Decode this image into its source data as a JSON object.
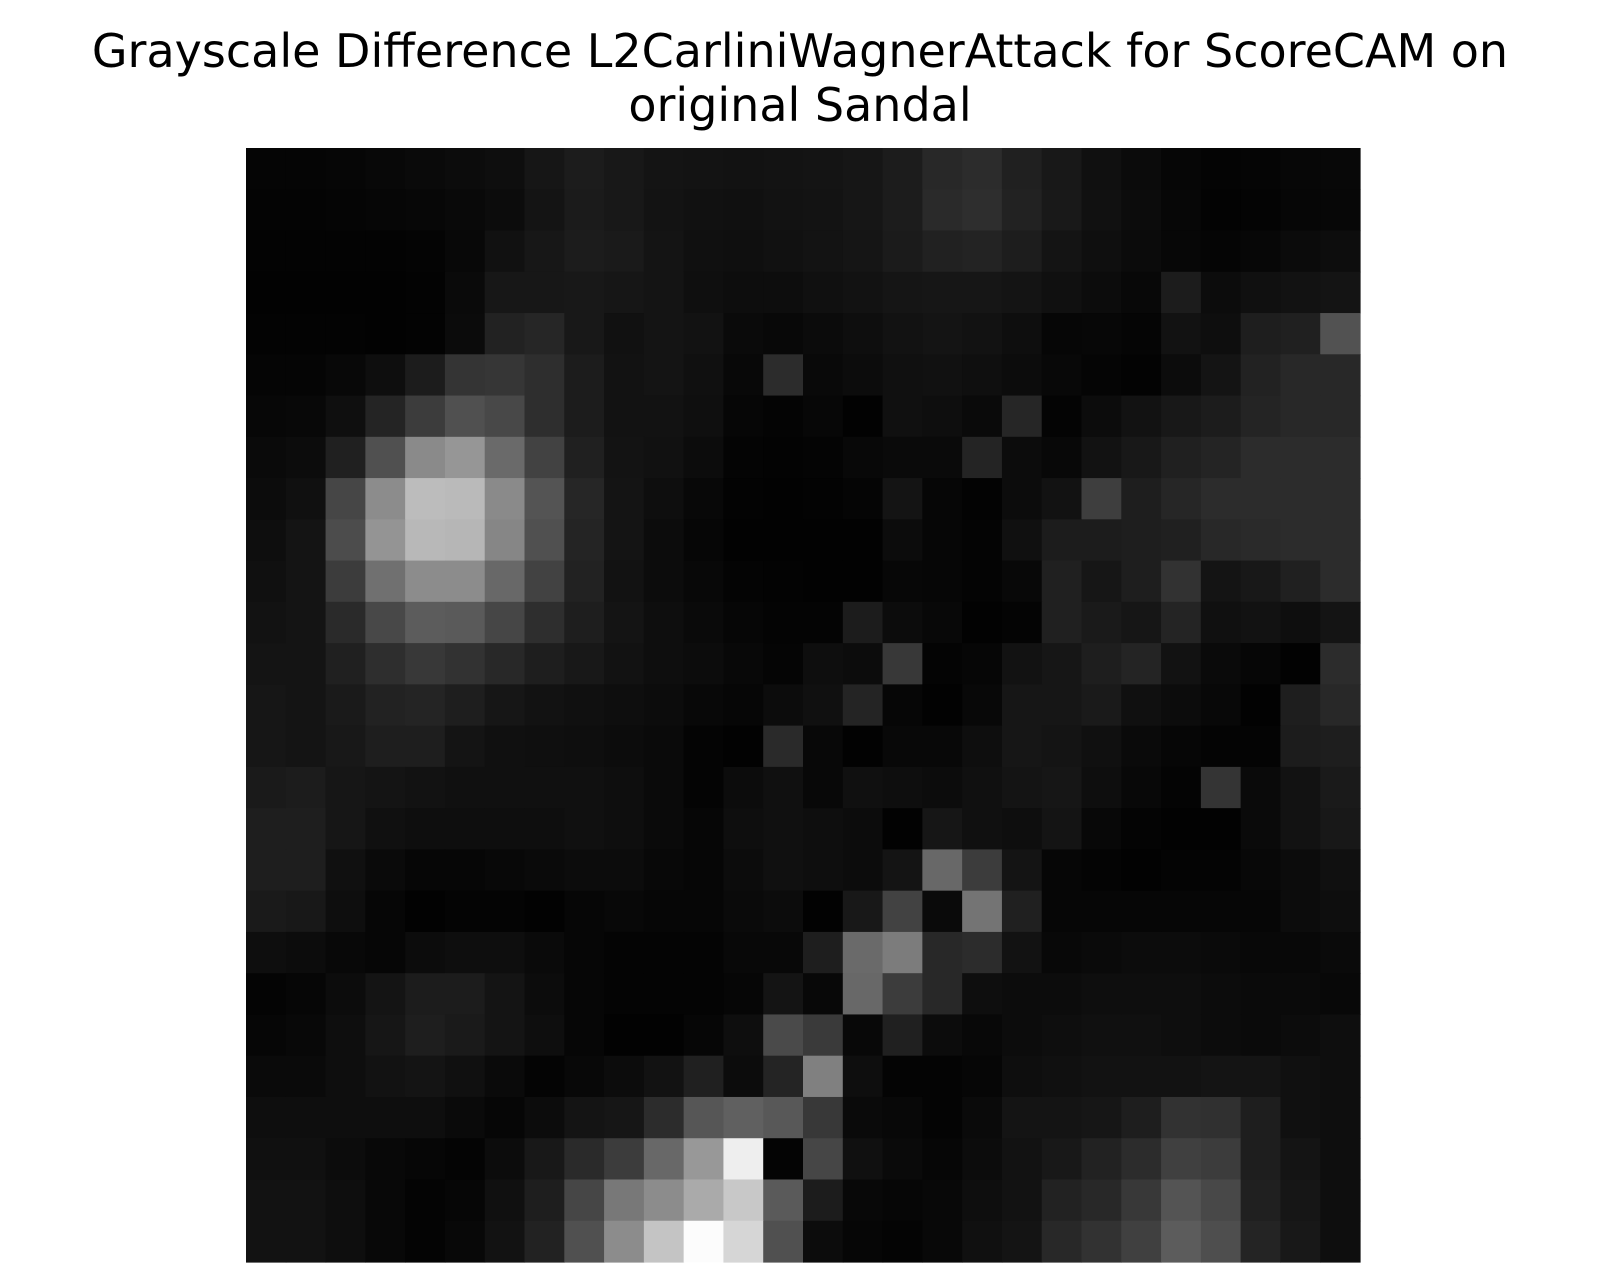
{
  "chart_data": {
    "type": "heatmap",
    "title": [
      "Grayscale Difference L2CarliniWagnerAttack for ScoreCAM on",
      "original Sandal"
    ],
    "xlabel": "",
    "ylabel": "",
    "colormap": "gray",
    "grid": false,
    "axes_visible": false,
    "vmin": 0,
    "vmax": 255,
    "values": [
      [
        5,
        5,
        6,
        8,
        10,
        12,
        14,
        22,
        28,
        24,
        20,
        19,
        18,
        19,
        20,
        22,
        28,
        40,
        44,
        32,
        24,
        16,
        11,
        6,
        4,
        5,
        7,
        8
      ],
      [
        4,
        4,
        5,
        6,
        7,
        9,
        12,
        20,
        27,
        24,
        19,
        17,
        16,
        18,
        19,
        22,
        28,
        42,
        46,
        34,
        25,
        17,
        12,
        7,
        3,
        4,
        6,
        7
      ],
      [
        3,
        3,
        3,
        3,
        4,
        8,
        17,
        23,
        28,
        26,
        20,
        16,
        15,
        17,
        19,
        21,
        27,
        33,
        35,
        29,
        20,
        15,
        11,
        7,
        5,
        7,
        11,
        13
      ],
      [
        2,
        2,
        2,
        2,
        3,
        10,
        23,
        23,
        24,
        22,
        20,
        15,
        13,
        13,
        16,
        18,
        21,
        22,
        22,
        20,
        16,
        12,
        8,
        28,
        12,
        16,
        18,
        20
      ],
      [
        3,
        3,
        3,
        2,
        3,
        11,
        34,
        38,
        24,
        17,
        20,
        18,
        10,
        8,
        11,
        14,
        18,
        20,
        18,
        14,
        6,
        7,
        5,
        18,
        14,
        30,
        32,
        82
      ],
      [
        5,
        5,
        8,
        14,
        28,
        52,
        54,
        46,
        28,
        18,
        20,
        16,
        8,
        44,
        9,
        12,
        16,
        17,
        15,
        12,
        8,
        5,
        3,
        12,
        20,
        34,
        40,
        40
      ],
      [
        7,
        8,
        15,
        36,
        60,
        80,
        72,
        46,
        28,
        18,
        18,
        15,
        6,
        4,
        7,
        2,
        16,
        14,
        10,
        38,
        4,
        12,
        18,
        24,
        28,
        36,
        40,
        40
      ],
      [
        10,
        12,
        32,
        80,
        138,
        150,
        106,
        66,
        32,
        19,
        17,
        12,
        4,
        3,
        4,
        8,
        10,
        10,
        36,
        12,
        8,
        18,
        24,
        32,
        36,
        44,
        44,
        44
      ],
      [
        12,
        16,
        70,
        140,
        188,
        186,
        138,
        84,
        38,
        20,
        14,
        8,
        3,
        2,
        3,
        5,
        20,
        6,
        3,
        12,
        18,
        62,
        30,
        38,
        44,
        44,
        44,
        44
      ],
      [
        14,
        20,
        76,
        148,
        184,
        182,
        134,
        80,
        36,
        20,
        12,
        6,
        2,
        2,
        2,
        2,
        12,
        6,
        4,
        16,
        28,
        28,
        30,
        32,
        40,
        42,
        44,
        44
      ],
      [
        16,
        20,
        60,
        112,
        140,
        140,
        104,
        66,
        34,
        18,
        12,
        8,
        4,
        3,
        2,
        2,
        7,
        6,
        4,
        8,
        32,
        22,
        30,
        50,
        20,
        24,
        32,
        44
      ],
      [
        18,
        20,
        42,
        72,
        92,
        90,
        70,
        46,
        30,
        20,
        14,
        10,
        6,
        4,
        4,
        28,
        12,
        8,
        2,
        4,
        32,
        26,
        22,
        36,
        16,
        18,
        14,
        20
      ],
      [
        20,
        20,
        32,
        46,
        56,
        50,
        40,
        30,
        24,
        18,
        14,
        12,
        8,
        5,
        14,
        12,
        56,
        4,
        6,
        18,
        22,
        30,
        36,
        18,
        10,
        6,
        2,
        44
      ],
      [
        22,
        20,
        26,
        34,
        36,
        30,
        22,
        18,
        16,
        14,
        12,
        8,
        6,
        12,
        16,
        36,
        6,
        2,
        8,
        22,
        22,
        26,
        16,
        12,
        8,
        2,
        30,
        40
      ],
      [
        22,
        20,
        24,
        30,
        30,
        20,
        16,
        15,
        14,
        12,
        10,
        4,
        2,
        42,
        8,
        2,
        8,
        8,
        14,
        22,
        20,
        16,
        10,
        6,
        4,
        4,
        28,
        30
      ],
      [
        26,
        28,
        22,
        20,
        18,
        16,
        16,
        16,
        16,
        14,
        10,
        4,
        12,
        16,
        8,
        16,
        14,
        12,
        16,
        20,
        22,
        14,
        8,
        4,
        52,
        10,
        18,
        26
      ],
      [
        30,
        30,
        22,
        16,
        14,
        14,
        14,
        14,
        16,
        14,
        10,
        6,
        14,
        16,
        14,
        12,
        2,
        22,
        16,
        14,
        20,
        8,
        4,
        2,
        2,
        10,
        18,
        24
      ],
      [
        30,
        30,
        16,
        10,
        6,
        6,
        8,
        10,
        12,
        12,
        8,
        6,
        12,
        16,
        14,
        12,
        20,
        104,
        60,
        20,
        6,
        4,
        2,
        4,
        4,
        8,
        12,
        16
      ],
      [
        26,
        24,
        14,
        6,
        2,
        4,
        4,
        2,
        6,
        8,
        6,
        6,
        10,
        12,
        2,
        24,
        66,
        10,
        116,
        32,
        6,
        6,
        6,
        6,
        6,
        6,
        12,
        14
      ],
      [
        14,
        12,
        8,
        6,
        12,
        14,
        14,
        10,
        6,
        4,
        4,
        4,
        8,
        8,
        30,
        106,
        124,
        40,
        44,
        18,
        8,
        10,
        12,
        12,
        10,
        8,
        8,
        10
      ],
      [
        4,
        6,
        12,
        20,
        28,
        28,
        20,
        12,
        6,
        4,
        4,
        4,
        6,
        20,
        8,
        104,
        60,
        40,
        14,
        12,
        12,
        14,
        14,
        14,
        12,
        10,
        10,
        8
      ],
      [
        6,
        8,
        14,
        22,
        30,
        26,
        20,
        14,
        6,
        2,
        2,
        6,
        14,
        74,
        58,
        8,
        32,
        12,
        8,
        12,
        14,
        16,
        16,
        14,
        12,
        10,
        12,
        14
      ],
      [
        10,
        10,
        14,
        18,
        20,
        16,
        10,
        4,
        8,
        12,
        18,
        32,
        12,
        36,
        128,
        14,
        4,
        4,
        6,
        14,
        16,
        18,
        18,
        18,
        20,
        20,
        16,
        14
      ],
      [
        14,
        14,
        14,
        14,
        14,
        10,
        6,
        12,
        20,
        22,
        44,
        86,
        96,
        88,
        56,
        10,
        8,
        4,
        10,
        20,
        20,
        22,
        30,
        50,
        48,
        30,
        16,
        14
      ],
      [
        16,
        16,
        12,
        8,
        6,
        4,
        12,
        24,
        42,
        60,
        104,
        152,
        238,
        4,
        70,
        16,
        10,
        6,
        12,
        18,
        24,
        34,
        44,
        64,
        60,
        30,
        20,
        14
      ],
      [
        18,
        18,
        14,
        8,
        4,
        6,
        16,
        30,
        70,
        120,
        140,
        170,
        200,
        90,
        28,
        8,
        6,
        8,
        14,
        18,
        34,
        40,
        56,
        84,
        72,
        32,
        22,
        14
      ],
      [
        18,
        18,
        14,
        8,
        4,
        8,
        18,
        34,
        80,
        140,
        196,
        252,
        214,
        80,
        12,
        6,
        4,
        8,
        16,
        20,
        40,
        50,
        64,
        92,
        78,
        36,
        24,
        14
      ]
    ]
  }
}
